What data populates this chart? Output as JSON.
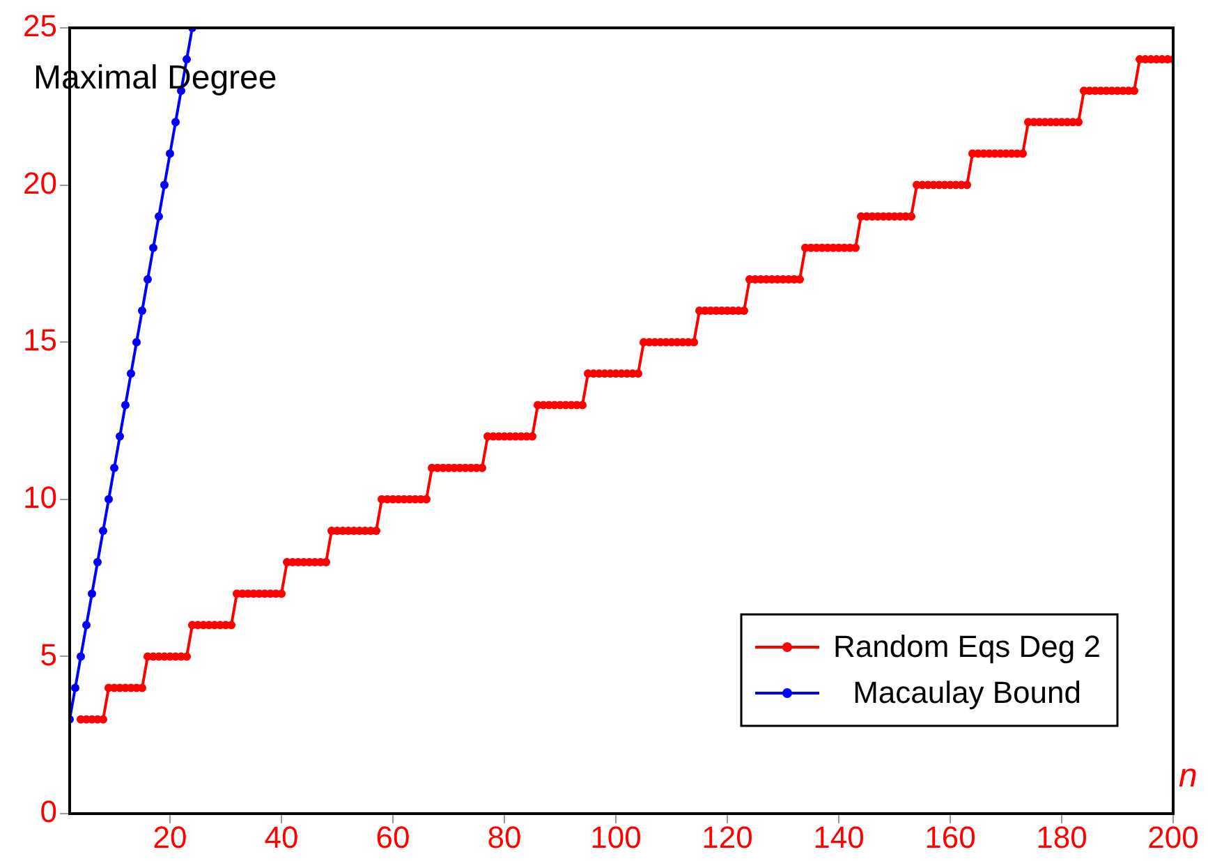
{
  "chart_data": {
    "type": "line",
    "xlabel": "n",
    "ylabel": "Maximal Degree",
    "xlim": [
      2,
      200
    ],
    "xticks": [
      20,
      40,
      60,
      80,
      100,
      120,
      140,
      160,
      180,
      200
    ],
    "ylim": [
      0,
      25
    ],
    "yticks": [
      0,
      5,
      10,
      15,
      20,
      25
    ],
    "marker": "circle",
    "line_style": "solid",
    "legend": "bottom right",
    "series": [
      {
        "name": "Random Eqs Deg 2",
        "color": "#ff0000",
        "x": [
          4,
          5,
          6,
          7,
          8,
          9,
          10,
          11,
          12,
          13,
          14,
          15,
          16,
          17,
          18,
          19,
          20,
          21,
          22,
          23,
          24,
          25,
          26,
          27,
          28,
          29,
          30,
          31,
          32,
          33,
          34,
          35,
          36,
          37,
          38,
          39,
          40,
          41,
          42,
          43,
          44,
          45,
          46,
          47,
          48,
          49,
          50,
          51,
          52,
          53,
          54,
          55,
          56,
          57,
          58,
          59,
          60,
          61,
          62,
          63,
          64,
          65,
          66,
          67,
          68,
          69,
          70,
          71,
          72,
          73,
          74,
          75,
          76,
          77,
          78,
          79,
          80,
          81,
          82,
          83,
          84,
          85,
          86,
          87,
          88,
          89,
          90,
          91,
          92,
          93,
          94,
          95,
          96,
          97,
          98,
          99,
          100,
          101,
          102,
          103,
          104,
          105,
          106,
          107,
          108,
          109,
          110,
          111,
          112,
          113,
          114,
          115,
          116,
          117,
          118,
          119,
          120,
          121,
          122,
          123,
          124,
          125,
          126,
          127,
          128,
          129,
          130,
          131,
          132,
          133,
          134,
          135,
          136,
          137,
          138,
          139,
          140,
          141,
          142,
          143,
          144,
          145,
          146,
          147,
          148,
          149,
          150,
          151,
          152,
          153,
          154,
          155,
          156,
          157,
          158,
          159,
          160,
          161,
          162,
          163,
          164,
          165,
          166,
          167,
          168,
          169,
          170,
          171,
          172,
          173,
          174,
          175,
          176,
          177,
          178,
          179,
          180,
          181,
          182,
          183,
          184,
          185,
          186,
          187,
          188,
          189,
          190,
          191,
          192,
          193,
          194,
          195,
          196,
          197,
          198,
          199,
          200
        ],
        "values": [
          3,
          3,
          3,
          3,
          3,
          4,
          4,
          4,
          4,
          4,
          4,
          4,
          5,
          5,
          5,
          5,
          5,
          5,
          5,
          5,
          6,
          6,
          6,
          6,
          6,
          6,
          6,
          6,
          7,
          7,
          7,
          7,
          7,
          7,
          7,
          7,
          7,
          8,
          8,
          8,
          8,
          8,
          8,
          8,
          8,
          9,
          9,
          9,
          9,
          9,
          9,
          9,
          9,
          9,
          10,
          10,
          10,
          10,
          10,
          10,
          10,
          10,
          10,
          11,
          11,
          11,
          11,
          11,
          11,
          11,
          11,
          11,
          11,
          12,
          12,
          12,
          12,
          12,
          12,
          12,
          12,
          12,
          13,
          13,
          13,
          13,
          13,
          13,
          13,
          13,
          13,
          14,
          14,
          14,
          14,
          14,
          14,
          14,
          14,
          14,
          14,
          15,
          15,
          15,
          15,
          15,
          15,
          15,
          15,
          15,
          15,
          16,
          16,
          16,
          16,
          16,
          16,
          16,
          16,
          16,
          17,
          17,
          17,
          17,
          17,
          17,
          17,
          17,
          17,
          17,
          18,
          18,
          18,
          18,
          18,
          18,
          18,
          18,
          18,
          18,
          19,
          19,
          19,
          19,
          19,
          19,
          19,
          19,
          19,
          19,
          20,
          20,
          20,
          20,
          20,
          20,
          20,
          20,
          20,
          20,
          21,
          21,
          21,
          21,
          21,
          21,
          21,
          21,
          21,
          21,
          22,
          22,
          22,
          22,
          22,
          22,
          22,
          22,
          22,
          22,
          23,
          23,
          23,
          23,
          23,
          23,
          23,
          23,
          23,
          23,
          24,
          24,
          24,
          24,
          24,
          24,
          24
        ]
      },
      {
        "name": "Macaulay Bound",
        "color": "#0000ff",
        "x": [
          2,
          3,
          4,
          5,
          6,
          7,
          8,
          9,
          10,
          11,
          12,
          13,
          14,
          15,
          16,
          17,
          18,
          19,
          20,
          21,
          22,
          23,
          24
        ],
        "values": [
          3,
          4,
          5,
          6,
          7,
          8,
          9,
          10,
          11,
          12,
          13,
          14,
          15,
          16,
          17,
          18,
          19,
          20,
          21,
          22,
          23,
          24,
          25
        ]
      }
    ]
  }
}
